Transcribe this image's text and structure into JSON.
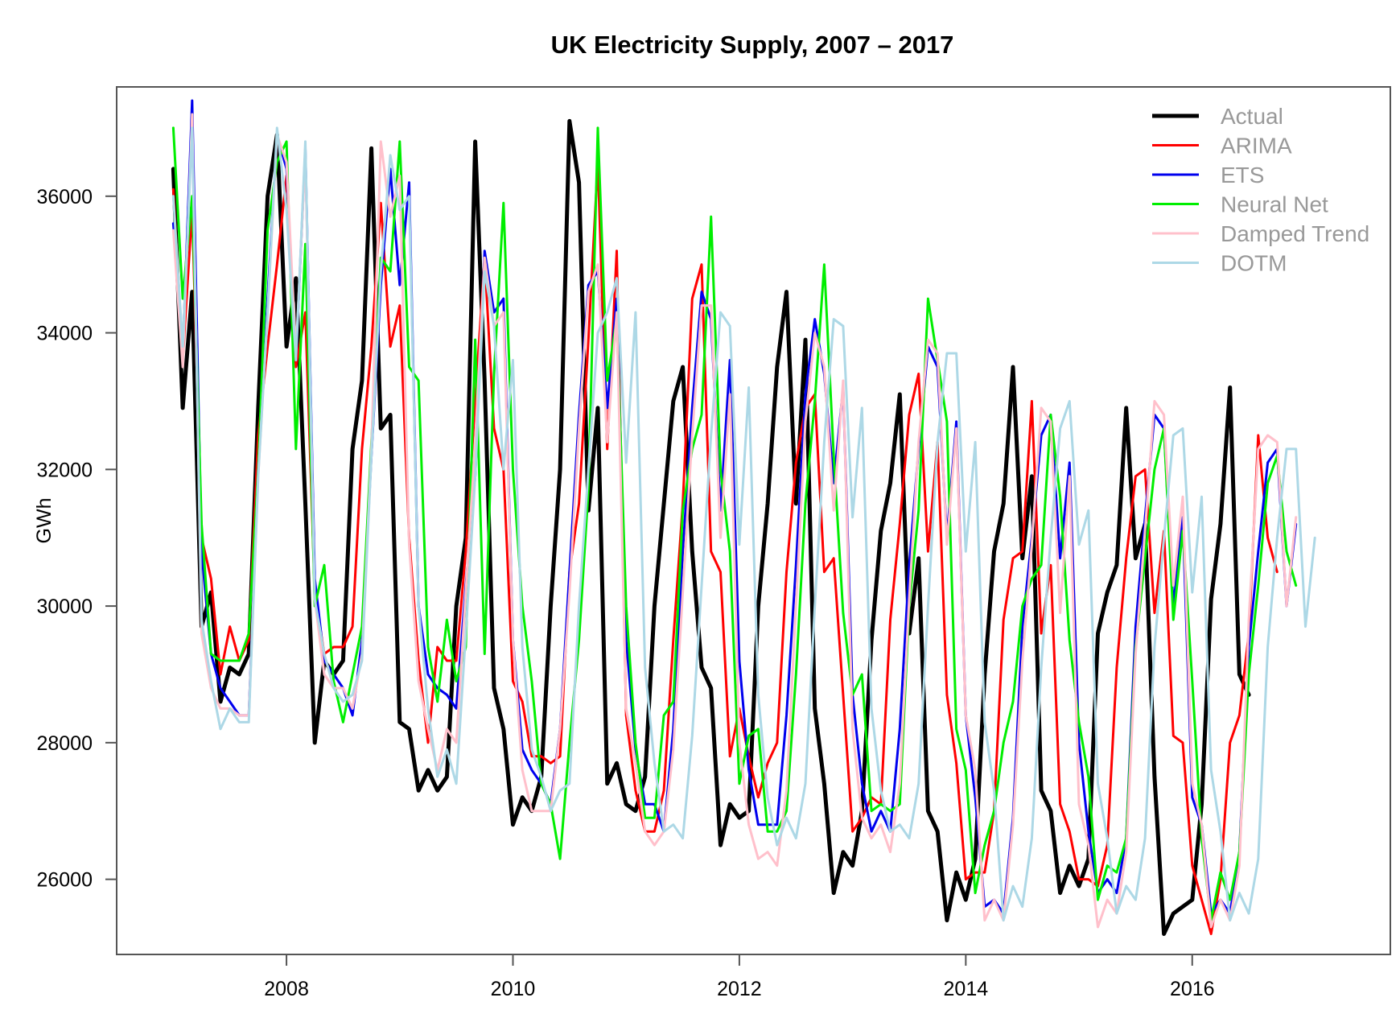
{
  "chart_data": {
    "type": "line",
    "title": "UK Electricity Supply, 2007 – 2017",
    "xlabel": "",
    "ylabel": "GWh",
    "xlim": [
      2006.5,
      2017.75
    ],
    "ylim": [
      24900,
      37600
    ],
    "x_ticks": [
      2008,
      2010,
      2012,
      2014,
      2016
    ],
    "y_ticks": [
      26000,
      28000,
      30000,
      32000,
      34000,
      36000
    ],
    "grid": false,
    "legend_position": "top-right",
    "series": [
      {
        "name": "Actual",
        "color": "#000000",
        "width": 5,
        "values": [
          36400,
          32900,
          34600,
          29700,
          30200,
          28600,
          29100,
          29000,
          29300,
          32900,
          36000,
          36900,
          33800,
          34800,
          31500,
          28000,
          29200,
          29000,
          29200,
          32300,
          33300,
          36700,
          32600,
          32800,
          28300,
          28200,
          27300,
          27600,
          27300,
          27500,
          30000,
          31000,
          36800,
          33300,
          28800,
          28200,
          26800,
          27200,
          27000,
          27500,
          30000,
          32000,
          37100,
          36200,
          31400,
          32900,
          27400,
          27700,
          27100,
          27000,
          27500,
          30000,
          31500,
          33000,
          33500,
          30800,
          29100,
          28800,
          26500,
          27100,
          26900,
          27000,
          30000,
          31500,
          33500,
          34600,
          31500,
          33900,
          28500,
          27400,
          25800,
          26400,
          26200,
          27000,
          29500,
          31100,
          31800,
          33100,
          29600,
          30700,
          27000,
          26700,
          25400,
          26100,
          25700,
          26300,
          29000,
          30800,
          31500,
          33500,
          30700,
          31900,
          27300,
          27000,
          25800,
          26200,
          25900,
          26300,
          29600,
          30200,
          30600,
          32900,
          30700,
          31200,
          27500,
          25200,
          25500,
          25600,
          25700,
          27100,
          30100,
          31200,
          33200,
          29000,
          28700
        ]
      },
      {
        "name": "ARIMA",
        "color": "#ff0000",
        "width": 3,
        "values": [
          36100,
          33600,
          35800,
          31000,
          30400,
          29000,
          29700,
          29200,
          29500,
          32500,
          33800,
          35000,
          36300,
          33500,
          34300,
          30200,
          29300,
          29400,
          29400,
          29700,
          32300,
          33800,
          35900,
          33800,
          34400,
          31000,
          29200,
          28000,
          29400,
          29200,
          29200,
          30800,
          33000,
          35100,
          32600,
          32000,
          28900,
          28600,
          27800,
          27800,
          27700,
          27800,
          30500,
          31500,
          33900,
          36500,
          32300,
          35200,
          28400,
          27300,
          26700,
          26700,
          27300,
          29500,
          31500,
          34500,
          35000,
          30800,
          30500,
          27800,
          28500,
          27800,
          27200,
          27700,
          28000,
          30500,
          32100,
          32900,
          33100,
          30500,
          30700,
          28700,
          26700,
          26900,
          27200,
          27100,
          29800,
          31200,
          32800,
          33400,
          30800,
          32400,
          28700,
          27700,
          26000,
          26100,
          26100,
          27000,
          29800,
          30700,
          30800,
          33000,
          29600,
          30600,
          27100,
          26700,
          26000,
          26000,
          25900,
          26500,
          29100,
          30700,
          31900,
          32000,
          29900,
          31100,
          28100,
          28000,
          26200,
          25700,
          25200,
          26000,
          28000,
          28400,
          29600,
          32500,
          31000,
          30500
        ]
      },
      {
        "name": "ETS",
        "color": "#0000ee",
        "width": 3,
        "values": [
          35600,
          33700,
          37400,
          30800,
          29300,
          28800,
          28600,
          28400,
          28400,
          32000,
          34500,
          36900,
          36400,
          33600,
          36700,
          30400,
          29200,
          29000,
          28800,
          28400,
          29500,
          32200,
          34700,
          36400,
          34700,
          36200,
          30000,
          29000,
          28800,
          28700,
          28500,
          30300,
          31900,
          35200,
          34300,
          34500,
          29500,
          27900,
          27600,
          27400,
          27100,
          28200,
          30500,
          32800,
          34700,
          34900,
          32900,
          34500,
          29500,
          27900,
          27100,
          27100,
          26700,
          28200,
          30800,
          32900,
          34600,
          34200,
          31400,
          33600,
          29200,
          27600,
          26800,
          26800,
          26800,
          28400,
          30600,
          33100,
          34200,
          33400,
          31800,
          33200,
          28700,
          27400,
          26700,
          27000,
          26700,
          28200,
          30600,
          32300,
          33800,
          33500,
          31000,
          32700,
          28400,
          27200,
          25600,
          25700,
          25500,
          26900,
          29700,
          31000,
          32500,
          32800,
          30700,
          32100,
          28000,
          26700,
          25800,
          26000,
          25800,
          26600,
          29700,
          31300,
          32800,
          32600,
          30000,
          31300,
          27200,
          26800,
          25500,
          25700,
          25500,
          26400,
          29400,
          30800,
          32100,
          32300,
          30000,
          31200
        ]
      },
      {
        "name": "Neural Net",
        "color": "#00ee00",
        "width": 3,
        "values": [
          37000,
          34500,
          36000,
          31200,
          29300,
          29200,
          29200,
          29200,
          29600,
          32000,
          35500,
          36500,
          36800,
          32300,
          35300,
          30000,
          30600,
          28900,
          28300,
          29000,
          29700,
          32400,
          35100,
          34900,
          36800,
          33500,
          33300,
          29400,
          28600,
          29800,
          28900,
          29400,
          33900,
          29300,
          33400,
          35900,
          32000,
          30000,
          28900,
          27400,
          27100,
          26300,
          28000,
          29500,
          31700,
          37000,
          33300,
          34200,
          30000,
          28000,
          26900,
          26900,
          28400,
          28600,
          31400,
          32300,
          32800,
          35700,
          32000,
          30800,
          27400,
          28100,
          28200,
          26700,
          26700,
          27000,
          29000,
          31500,
          33000,
          35000,
          32200,
          29900,
          28700,
          29000,
          27000,
          27100,
          27000,
          27100,
          30000,
          31400,
          34500,
          33600,
          32700,
          28200,
          27600,
          25800,
          26500,
          27000,
          28000,
          28600,
          30000,
          30400,
          30600,
          32800,
          31600,
          29500,
          28300,
          27500,
          25700,
          26200,
          26100,
          26600,
          29400,
          30700,
          32000,
          32600,
          29800,
          31100,
          28900,
          26600,
          25400,
          26100,
          25700,
          26400,
          29000,
          30300,
          31800,
          32200,
          30800,
          30300
        ]
      },
      {
        "name": "Damped Trend",
        "color": "#ffc0cb",
        "width": 3,
        "values": [
          35500,
          33500,
          37200,
          29600,
          28800,
          28500,
          28500,
          28400,
          28400,
          31900,
          34300,
          36900,
          36500,
          33700,
          36600,
          30100,
          29000,
          28800,
          28800,
          28500,
          29300,
          32300,
          36800,
          35700,
          36300,
          30900,
          28900,
          28200,
          27600,
          28200,
          28000,
          30200,
          32400,
          35100,
          34100,
          34300,
          29500,
          27600,
          27000,
          27000,
          27000,
          28200,
          30200,
          32600,
          34600,
          35000,
          32400,
          34300,
          28500,
          27700,
          26700,
          26500,
          26700,
          27900,
          30200,
          32500,
          34400,
          34400,
          31000,
          33100,
          28000,
          26800,
          26300,
          26400,
          26200,
          27300,
          30000,
          32700,
          34000,
          33500,
          31400,
          33300,
          28200,
          26900,
          26600,
          26800,
          26400,
          27400,
          30100,
          32400,
          33900,
          33700,
          30900,
          32600,
          28400,
          27600,
          25400,
          25700,
          25400,
          26800,
          29200,
          30900,
          32900,
          32700,
          29900,
          31900,
          27100,
          26500,
          25300,
          25700,
          25500,
          26400,
          29300,
          31100,
          33000,
          32800,
          30300,
          31600,
          27400,
          26800,
          25300,
          25700,
          25400,
          26200,
          29800,
          32300,
          32500,
          32400,
          30000,
          31300
        ]
      },
      {
        "name": "DOTM",
        "color": "#add8e6",
        "width": 3,
        "values": [
          36000,
          33800,
          37000,
          29800,
          28900,
          28200,
          28500,
          28300,
          28300,
          31900,
          34300,
          37000,
          35800,
          33600,
          36800,
          30100,
          29300,
          28800,
          28600,
          28700,
          29200,
          32200,
          34900,
          36600,
          35800,
          36000,
          30000,
          28500,
          27500,
          27900,
          27400,
          29600,
          31900,
          34900,
          34100,
          32000,
          33600,
          29400,
          27900,
          27500,
          27000,
          27300,
          27400,
          30000,
          32000,
          34000,
          34300,
          34800,
          32100,
          34300,
          29100,
          27700,
          26700,
          26800,
          26600,
          28100,
          30300,
          32500,
          34300,
          34100,
          30900,
          33200,
          28700,
          27200,
          26500,
          26900,
          26600,
          27400,
          30000,
          32400,
          34200,
          34100,
          31300,
          32900,
          28500,
          27300,
          26700,
          26800,
          26600,
          27400,
          30000,
          32400,
          33700,
          33700,
          30800,
          32400,
          28300,
          27300,
          25400,
          25900,
          25600,
          26600,
          29100,
          31000,
          32600,
          33000,
          30900,
          31400,
          27400,
          26600,
          25500,
          25900,
          25700,
          26600,
          29400,
          31000,
          32500,
          32600,
          30200,
          31600,
          27600,
          26700,
          25400,
          25800,
          25500,
          26300,
          29400,
          31000,
          32300,
          32300,
          29700,
          31000
        ]
      }
    ]
  }
}
